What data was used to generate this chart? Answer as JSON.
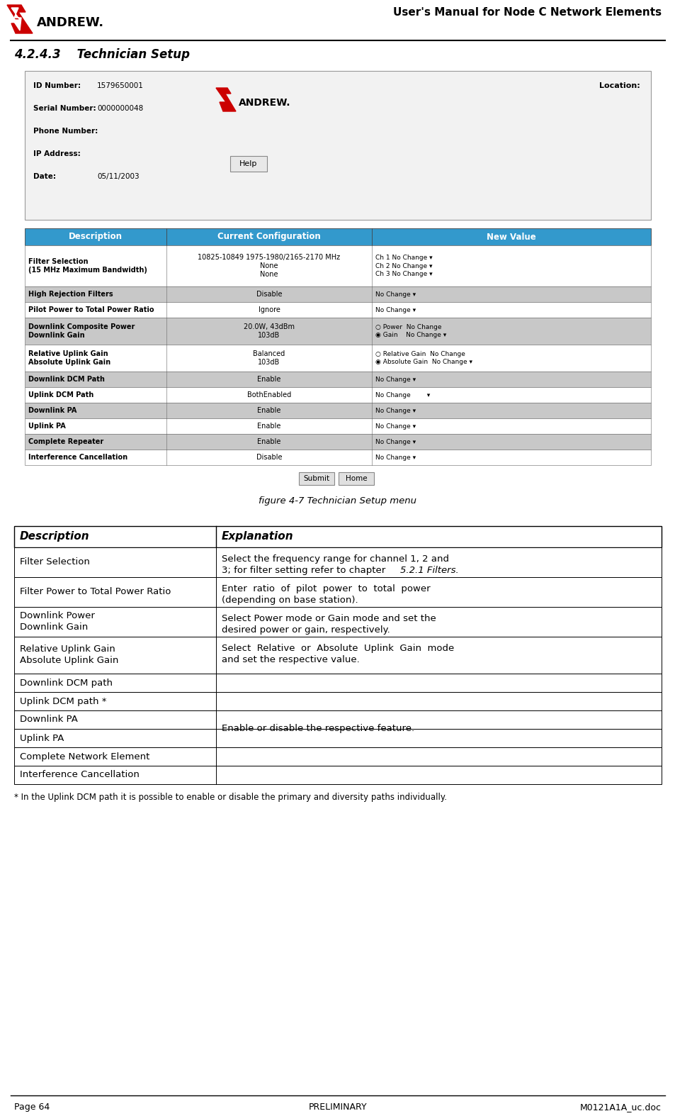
{
  "header_title": "User's Manual for Node C Network Elements",
  "section_title": "4.2.4.3    Technician Setup",
  "figure_caption": "figure 4-7 Technician Setup menu",
  "footer_left": "Page 64",
  "footer_center": "PRELIMINARY",
  "footer_right": "M0121A1A_uc.doc",
  "footnote": "* In the Uplink DCM path it is possible to enable or disable the primary and diversity paths individually.",
  "ui_fields": [
    [
      "ID Number:",
      "1579650001"
    ],
    [
      "Serial Number:",
      "0000000048"
    ],
    [
      "Phone Number:",
      ""
    ],
    [
      "IP Address:",
      ""
    ],
    [
      "Date:",
      "05/11/2003"
    ]
  ],
  "ui_location": "Location:",
  "table_header_color": "#3399CC",
  "table_alt_color": "#C8C8C8",
  "table_white_color": "#FFFFFF",
  "table_columns": [
    "Description",
    "Current Configuration",
    "New Value"
  ],
  "table_rows": [
    {
      "desc": "Filter Selection\n(15 MHz Maximum Bandwidth)",
      "config": "10825-10849 1975-1980/2165-2170 MHz\nNone\nNone",
      "newval": "Ch 1 No Change ▾\nCh 2 No Change ▾\nCh 3 No Change ▾",
      "alt": false,
      "bold_desc": true
    },
    {
      "desc": "High Rejection Filters",
      "config": "Disable",
      "newval": "No Change ▾",
      "alt": true,
      "bold_desc": true
    },
    {
      "desc": "Pilot Power to Total Power Ratio",
      "config": "Ignore",
      "newval": "No Change ▾",
      "alt": false,
      "bold_desc": true
    },
    {
      "desc": "Downlink Composite Power\nDownlink Gain",
      "config": "20.0W, 43dBm\n103dB",
      "newval": "○ Power  No Change\n◉ Gain    No Change ▾",
      "alt": true,
      "bold_desc": true
    },
    {
      "desc": "Relative Uplink Gain\nAbsolute Uplink Gain",
      "config": "Balanced\n103dB",
      "newval": "○ Relative Gain  No Change\n◉ Absolute Gain  No Change ▾",
      "alt": false,
      "bold_desc": true
    },
    {
      "desc": "Downlink DCM Path",
      "config": "Enable",
      "newval": "No Change ▾",
      "alt": true,
      "bold_desc": true
    },
    {
      "desc": "Uplink DCM Path",
      "config": "BothEnabled",
      "newval": "No Change        ▾",
      "alt": false,
      "bold_desc": true
    },
    {
      "desc": "Downlink PA",
      "config": "Enable",
      "newval": "No Change ▾",
      "alt": true,
      "bold_desc": true
    },
    {
      "desc": "Uplink PA",
      "config": "Enable",
      "newval": "No Change ▾",
      "alt": false,
      "bold_desc": true
    },
    {
      "desc": "Complete Repeater",
      "config": "Enable",
      "newval": "No Change ▾",
      "alt": true,
      "bold_desc": true
    },
    {
      "desc": "Interference Cancellation",
      "config": "Disable",
      "newval": "No Change ▾",
      "alt": false,
      "bold_desc": true
    }
  ],
  "desc_table_header": "Description",
  "expl_table_header": "Explanation",
  "desc_expl_rows": [
    {
      "desc": "Filter Selection",
      "expl_normal": "Select the frequency range for channel 1, 2 and\n3; for filter setting refer to chapter ",
      "expl_italic": "5.2.1 Filters",
      "expl_normal2": ".",
      "expl_plain": ""
    },
    {
      "desc": "Filter Power to Total Power Ratio",
      "expl_normal": "",
      "expl_italic": "",
      "expl_normal2": "",
      "expl_plain": "Enter  ratio  of  pilot  power  to  total  power\n(depending on base station)."
    },
    {
      "desc": "Downlink Power\nDownlink Gain",
      "expl_normal": "",
      "expl_italic": "",
      "expl_normal2": "",
      "expl_plain": "Select Power mode or Gain mode and set the\ndesired power or gain, respectively."
    },
    {
      "desc": "Relative Uplink Gain\nAbsolute Uplink Gain",
      "expl_normal": "",
      "expl_italic": "",
      "expl_normal2": "",
      "expl_plain": "Select  Relative  or  Absolute  Uplink  Gain  mode\nand set the respective value."
    },
    {
      "desc": "Downlink DCM path",
      "expl_plain": ""
    },
    {
      "desc": "Uplink DCM path *",
      "expl_plain": ""
    },
    {
      "desc": "Downlink PA",
      "expl_plain": ""
    },
    {
      "desc": "Uplink PA",
      "expl_plain": "Enable or disable the respective feature."
    },
    {
      "desc": "Complete Network Element",
      "expl_plain": ""
    },
    {
      "desc": "Interference Cancellation",
      "expl_plain": ""
    }
  ],
  "dt_row_heights": [
    42,
    42,
    42,
    52,
    26,
    26,
    26,
    26,
    26,
    26
  ]
}
